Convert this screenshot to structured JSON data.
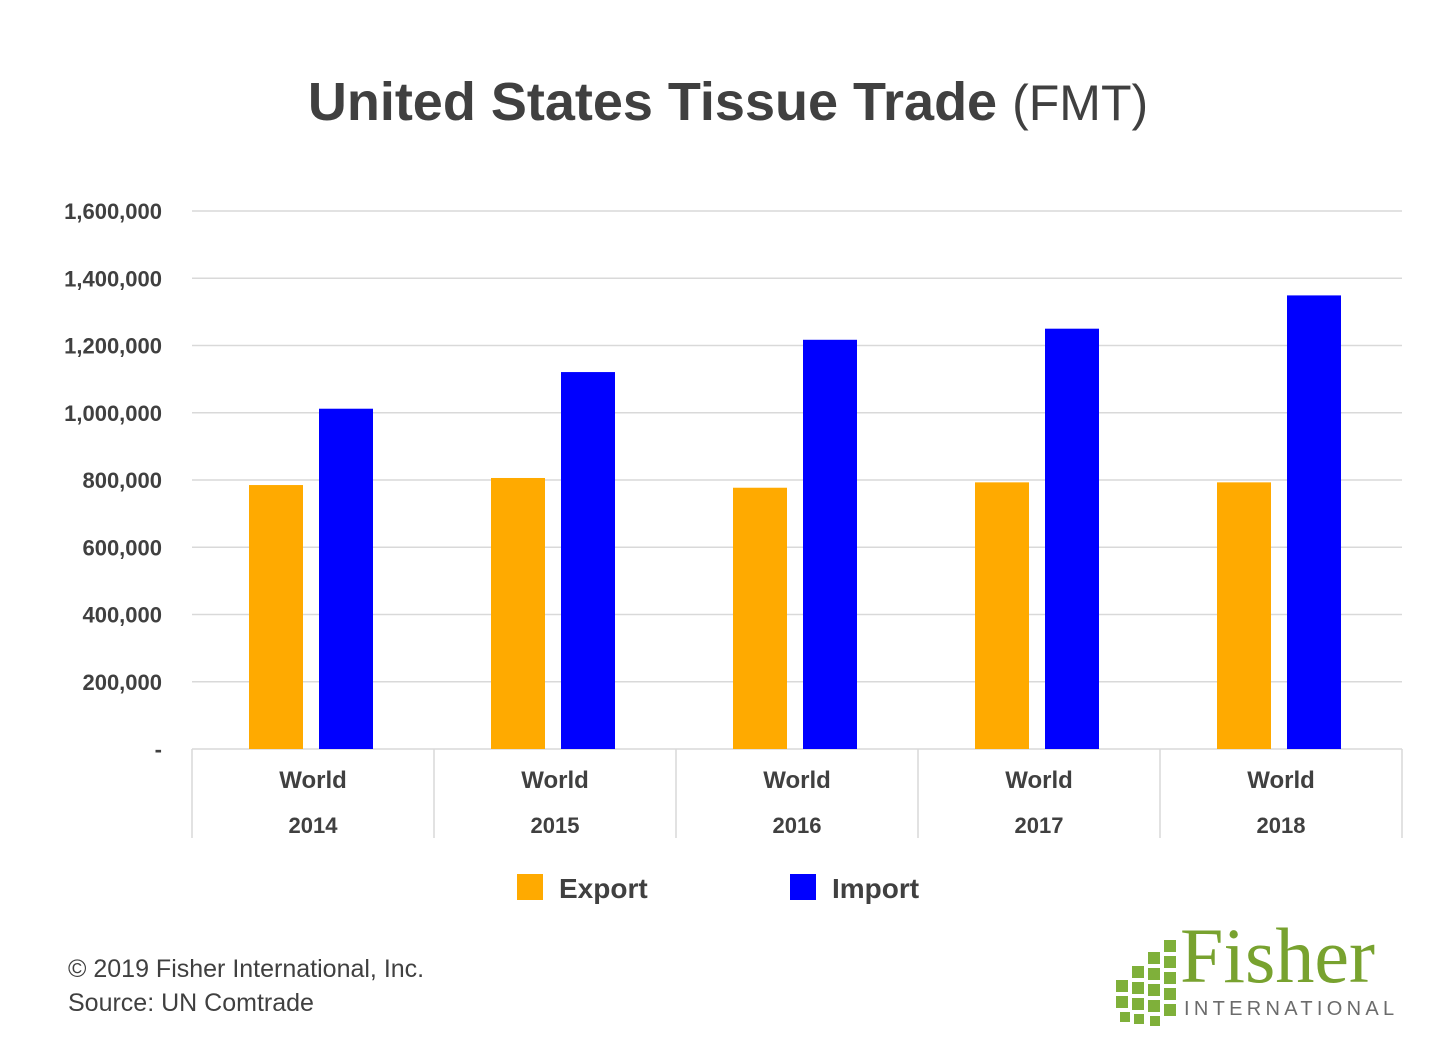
{
  "title": {
    "main": "United States Tissue Trade",
    "unit": "(FMT)"
  },
  "chart_data": {
    "type": "bar",
    "title": "United States Tissue Trade (FMT)",
    "categories": [
      {
        "region": "World",
        "year": "2014"
      },
      {
        "region": "World",
        "year": "2015"
      },
      {
        "region": "World",
        "year": "2016"
      },
      {
        "region": "World",
        "year": "2017"
      },
      {
        "region": "World",
        "year": "2018"
      }
    ],
    "series": [
      {
        "name": "Export",
        "color": "#FFAA00",
        "values": [
          785000,
          806000,
          777000,
          793000,
          793000
        ]
      },
      {
        "name": "Import",
        "color": "#0000FF",
        "values": [
          1012000,
          1121000,
          1217000,
          1250000,
          1349000
        ]
      }
    ],
    "ylim": [
      0,
      1600000
    ],
    "yticks": [
      "-",
      "200,000",
      "400,000",
      "600,000",
      "800,000",
      "1,000,000",
      "1,200,000",
      "1,400,000",
      "1,600,000"
    ],
    "grid": true,
    "legend": "bottom-center"
  },
  "footer": {
    "copyright": "© 2019 Fisher International, Inc.",
    "source": "Source: UN Comtrade"
  },
  "logo": {
    "word": "Fisher",
    "sub": "INTERNATIONAL"
  }
}
